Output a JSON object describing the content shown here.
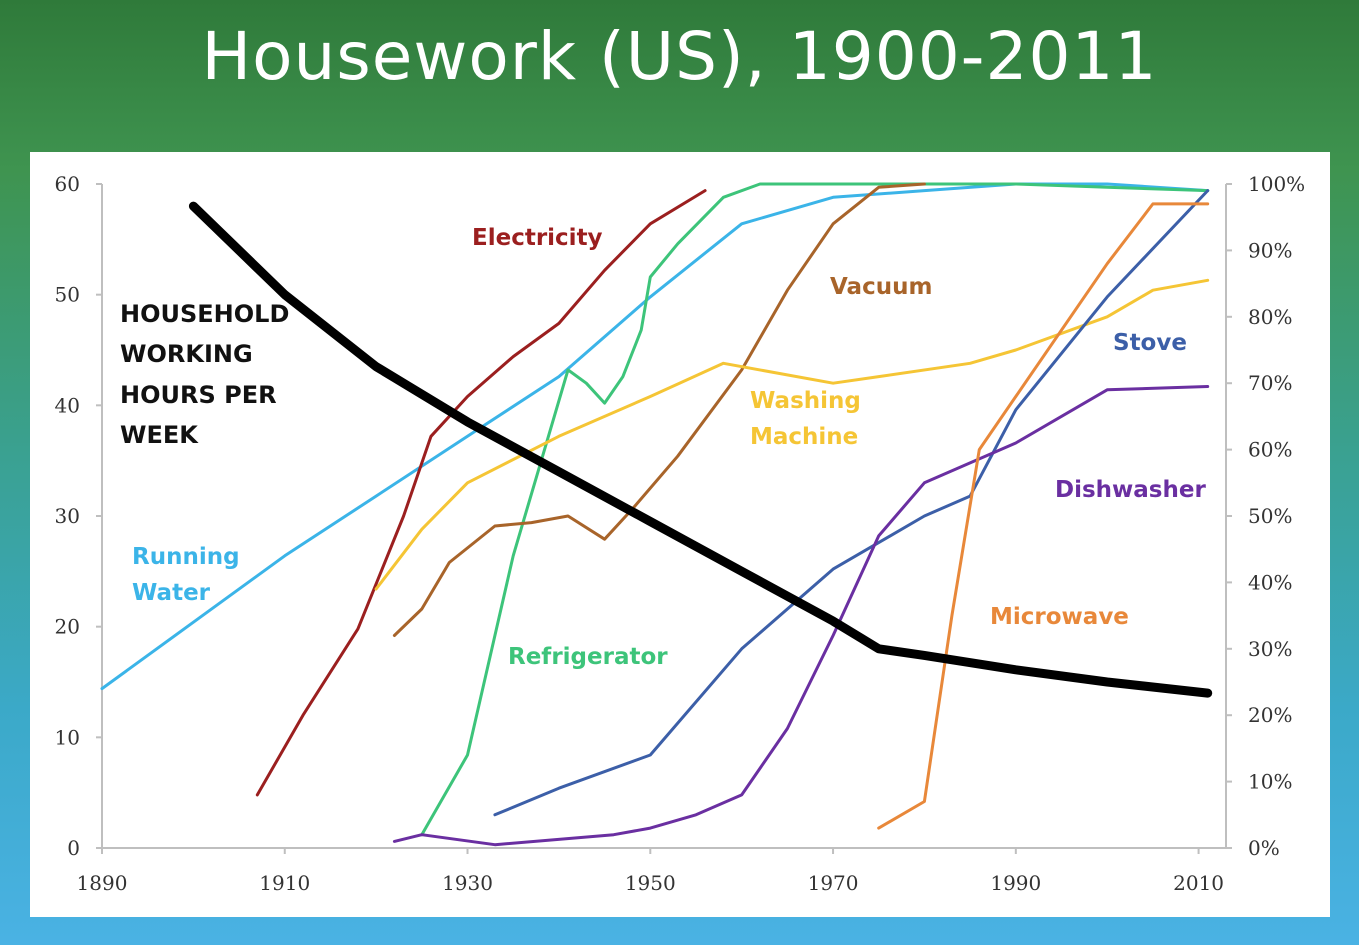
{
  "slide": {
    "title": "Housework (US), 1900-2011"
  },
  "chart_data": {
    "type": "line",
    "title": "Housework (US), 1900-2011",
    "x_ticks": [
      1890,
      1910,
      1930,
      1950,
      1970,
      1990,
      2010
    ],
    "y_left_ticks": [
      0,
      10,
      20,
      30,
      40,
      50,
      60
    ],
    "y_right_ticks": [
      "0%",
      "10%",
      "20%",
      "30%",
      "40%",
      "50%",
      "60%",
      "70%",
      "80%",
      "90%",
      "100%"
    ],
    "xlim": [
      1890,
      2013
    ],
    "ylim_left": [
      0,
      60
    ],
    "ylim_right": [
      0,
      100
    ],
    "left_axis_label": [
      "HOUSEHOLD",
      "WORKING",
      "HOURS PER",
      "WEEK"
    ],
    "grid": false,
    "series": [
      {
        "name": "HOUSEHOLD WORKING HOURS PER WEEK",
        "axis": "left",
        "color": "#000000",
        "points": [
          [
            1900,
            58
          ],
          [
            1910,
            50
          ],
          [
            1920,
            43.5
          ],
          [
            1930,
            38.5
          ],
          [
            1940,
            34
          ],
          [
            1950,
            29.5
          ],
          [
            1960,
            25
          ],
          [
            1970,
            20.5
          ],
          [
            1975,
            18
          ],
          [
            1980,
            17.4
          ],
          [
            1990,
            16.1
          ],
          [
            2000,
            15
          ],
          [
            2011,
            14
          ]
        ]
      },
      {
        "name": "Running Water",
        "axis": "right",
        "color": "#3bb4e8",
        "points": [
          [
            1890,
            24
          ],
          [
            1900,
            34
          ],
          [
            1910,
            44
          ],
          [
            1920,
            53
          ],
          [
            1930,
            62
          ],
          [
            1940,
            71
          ],
          [
            1950,
            83
          ],
          [
            1960,
            94
          ],
          [
            1970,
            98
          ],
          [
            1980,
            99
          ],
          [
            1990,
            100
          ],
          [
            2000,
            100
          ],
          [
            2011,
            99
          ]
        ]
      },
      {
        "name": "Electricity",
        "axis": "right",
        "color": "#9b1f1f",
        "points": [
          [
            1907,
            8
          ],
          [
            1912,
            20
          ],
          [
            1918,
            33
          ],
          [
            1923,
            50
          ],
          [
            1926,
            62
          ],
          [
            1930,
            68
          ],
          [
            1935,
            74
          ],
          [
            1940,
            79
          ],
          [
            1945,
            87
          ],
          [
            1950,
            94
          ],
          [
            1956,
            99
          ]
        ]
      },
      {
        "name": "Refrigerator",
        "axis": "right",
        "color": "#3dc47a",
        "points": [
          [
            1925,
            2
          ],
          [
            1930,
            14
          ],
          [
            1935,
            44
          ],
          [
            1938,
            58
          ],
          [
            1941,
            72
          ],
          [
            1943,
            70
          ],
          [
            1945,
            67
          ],
          [
            1947,
            71
          ],
          [
            1949,
            78
          ],
          [
            1950,
            86
          ],
          [
            1953,
            91
          ],
          [
            1958,
            98
          ],
          [
            1962,
            100
          ],
          [
            1970,
            100
          ],
          [
            1990,
            100
          ],
          [
            2000,
            99.5
          ],
          [
            2011,
            99
          ]
        ]
      },
      {
        "name": "Vacuum",
        "axis": "right",
        "color": "#a8642a",
        "points": [
          [
            1922,
            32
          ],
          [
            1925,
            36
          ],
          [
            1928,
            43
          ],
          [
            1933,
            48.5
          ],
          [
            1937,
            49
          ],
          [
            1941,
            50
          ],
          [
            1945,
            46.5
          ],
          [
            1948,
            51
          ],
          [
            1953,
            59
          ],
          [
            1960,
            72
          ],
          [
            1965,
            84
          ],
          [
            1970,
            94
          ],
          [
            1975,
            99.5
          ],
          [
            1980,
            100
          ]
        ]
      },
      {
        "name": "Washing Machine",
        "axis": "right",
        "color": "#f5c535",
        "points": [
          [
            1920,
            39
          ],
          [
            1925,
            48
          ],
          [
            1930,
            55
          ],
          [
            1940,
            62
          ],
          [
            1950,
            68
          ],
          [
            1958,
            73
          ],
          [
            1970,
            70
          ],
          [
            1975,
            71
          ],
          [
            1985,
            73
          ],
          [
            1990,
            75
          ],
          [
            2000,
            80
          ],
          [
            2005,
            84
          ],
          [
            2011,
            85.5
          ]
        ]
      },
      {
        "name": "Stove",
        "axis": "right",
        "color": "#3c5fa8",
        "points": [
          [
            1933,
            5
          ],
          [
            1940,
            9
          ],
          [
            1950,
            14
          ],
          [
            1960,
            30
          ],
          [
            1970,
            42
          ],
          [
            1980,
            50
          ],
          [
            1985,
            53
          ],
          [
            1990,
            66
          ],
          [
            2000,
            83
          ],
          [
            2011,
            99
          ]
        ]
      },
      {
        "name": "Dishwasher",
        "axis": "right",
        "color": "#6a2fa1",
        "points": [
          [
            1922,
            1
          ],
          [
            1925,
            2
          ],
          [
            1933,
            0.5
          ],
          [
            1946,
            2
          ],
          [
            1950,
            3
          ],
          [
            1955,
            5
          ],
          [
            1960,
            8
          ],
          [
            1965,
            18
          ],
          [
            1970,
            32
          ],
          [
            1975,
            47
          ],
          [
            1980,
            55
          ],
          [
            1990,
            61
          ],
          [
            2000,
            69
          ],
          [
            2011,
            69.5
          ]
        ]
      },
      {
        "name": "Microwave",
        "axis": "right",
        "color": "#e8883a",
        "points": [
          [
            1975,
            3
          ],
          [
            1980,
            7
          ],
          [
            1983,
            35
          ],
          [
            1986,
            60
          ],
          [
            1990,
            68
          ],
          [
            2000,
            88
          ],
          [
            2005,
            97
          ],
          [
            2011,
            97
          ]
        ]
      }
    ],
    "labels": [
      {
        "text": "Electricity",
        "color": "#9b1f1f"
      },
      {
        "text": "Vacuum",
        "color": "#a8642a"
      },
      {
        "text": "Stove",
        "color": "#3c5fa8"
      },
      {
        "text": "Washing",
        "color": "#f5c535"
      },
      {
        "text": "Machine",
        "color": "#f5c535"
      },
      {
        "text": "Dishwasher",
        "color": "#6a2fa1"
      },
      {
        "text": "Running",
        "color": "#3bb4e8"
      },
      {
        "text": "Water",
        "color": "#3bb4e8"
      },
      {
        "text": "Refrigerator",
        "color": "#3dc47a"
      },
      {
        "text": "Microwave",
        "color": "#e8883a"
      }
    ]
  }
}
